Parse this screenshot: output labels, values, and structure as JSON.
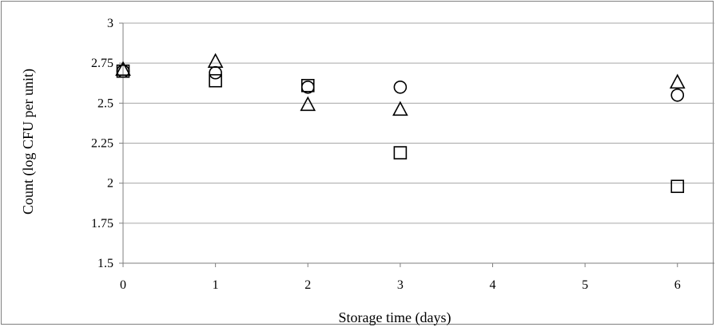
{
  "chart_data": {
    "type": "scatter",
    "title": "",
    "xlabel": "Storage time (days)",
    "ylabel": "Count (log CFU per unit)",
    "xlim": [
      0,
      6.4
    ],
    "ylim": [
      1.5,
      3
    ],
    "x_ticks": [
      0,
      1,
      2,
      3,
      4,
      5,
      6
    ],
    "y_ticks": [
      1.5,
      1.75,
      2,
      2.25,
      2.5,
      2.75,
      3
    ],
    "y_tick_labels": [
      "1.5",
      "1.75",
      "2",
      "2.25",
      "2.5",
      "2.75",
      "3"
    ],
    "grid": "horizontal",
    "legend": "none",
    "series": [
      {
        "marker": "square",
        "x": [
          0,
          1,
          2,
          3,
          6
        ],
        "y": [
          2.7,
          2.64,
          2.61,
          2.19,
          1.98
        ]
      },
      {
        "marker": "circle",
        "x": [
          0,
          1,
          2,
          3,
          6
        ],
        "y": [
          2.7,
          2.69,
          2.6,
          2.6,
          2.55
        ]
      },
      {
        "marker": "triangle",
        "x": [
          0,
          1,
          2,
          3,
          6
        ],
        "y": [
          2.71,
          2.76,
          2.49,
          2.46,
          2.63
        ]
      }
    ],
    "colors": {
      "marker_stroke": "#000000",
      "grid": "#a6a6a6",
      "axis": "#7f7f7f"
    }
  }
}
